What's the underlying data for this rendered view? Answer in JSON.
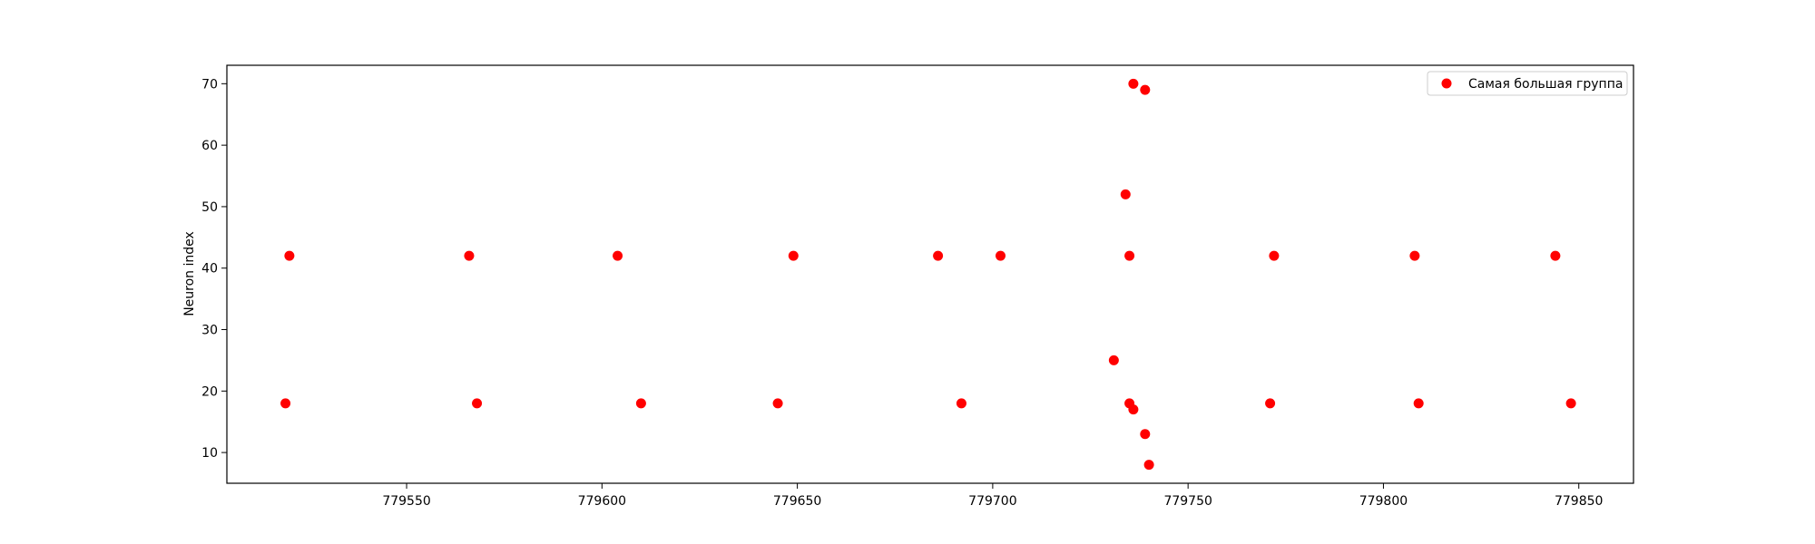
{
  "chart_data": {
    "type": "scatter",
    "title": "",
    "xlabel": "",
    "ylabel": "Neuron index",
    "xlim": [
      779504,
      779864
    ],
    "ylim": [
      5,
      73
    ],
    "xticks": [
      779550,
      779600,
      779650,
      779700,
      779750,
      779800,
      779850
    ],
    "yticks": [
      10,
      20,
      30,
      40,
      50,
      60,
      70
    ],
    "grid": false,
    "legend_position": "top-right",
    "series": [
      {
        "name": "Самая большая группа",
        "color": "#ff0000",
        "points": [
          {
            "x": 779520,
            "y": 42
          },
          {
            "x": 779519,
            "y": 18
          },
          {
            "x": 779566,
            "y": 42
          },
          {
            "x": 779568,
            "y": 18
          },
          {
            "x": 779604,
            "y": 42
          },
          {
            "x": 779610,
            "y": 18
          },
          {
            "x": 779649,
            "y": 42
          },
          {
            "x": 779645,
            "y": 18
          },
          {
            "x": 779686,
            "y": 42
          },
          {
            "x": 779692,
            "y": 18
          },
          {
            "x": 779702,
            "y": 42
          },
          {
            "x": 779731,
            "y": 25
          },
          {
            "x": 779734,
            "y": 52
          },
          {
            "x": 779735,
            "y": 42
          },
          {
            "x": 779735,
            "y": 18
          },
          {
            "x": 779736,
            "y": 17
          },
          {
            "x": 779736,
            "y": 70
          },
          {
            "x": 779739,
            "y": 69
          },
          {
            "x": 779739,
            "y": 13
          },
          {
            "x": 779740,
            "y": 8
          },
          {
            "x": 779771,
            "y": 18
          },
          {
            "x": 779772,
            "y": 42
          },
          {
            "x": 779808,
            "y": 42
          },
          {
            "x": 779809,
            "y": 18
          },
          {
            "x": 779844,
            "y": 42
          },
          {
            "x": 779848,
            "y": 18
          }
        ]
      }
    ]
  }
}
